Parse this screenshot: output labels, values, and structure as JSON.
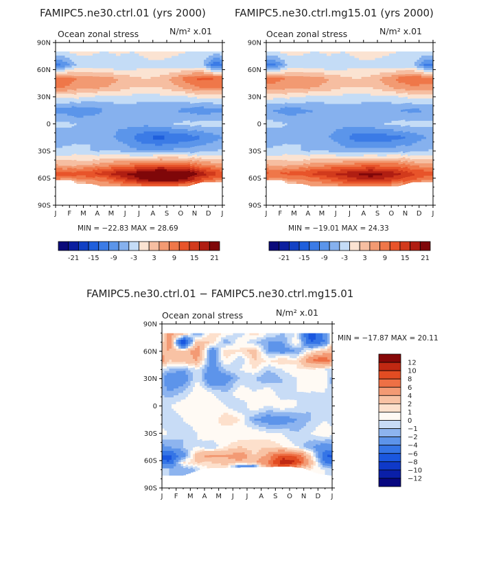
{
  "chart_data": [
    {
      "type": "heatmap",
      "title": "FAMIPC5.ne30.ctrl.01 (yrs 2000)",
      "subtitle": "Ocean zonal stress",
      "units": "N/m² x.01",
      "x_ticks": [
        "J",
        "F",
        "M",
        "A",
        "M",
        "J",
        "J",
        "A",
        "S",
        "O",
        "N",
        "D",
        "J"
      ],
      "y_ticks": [
        "90N",
        "60N",
        "30N",
        "0",
        "30S",
        "60S",
        "90S"
      ],
      "stats": "MIN = −22.83  MAX =  28.69",
      "field": {
        "lat": [
          80,
          65,
          50,
          40,
          30,
          15,
          0,
          -15,
          -30,
          -45,
          -55,
          -62,
          -70
        ],
        "rows": [
          [
            0,
            1,
            1,
            0,
            1,
            0,
            1,
            2,
            1,
            0,
            0,
            -1
          ],
          [
            -9,
            -3,
            -3,
            -3,
            -3,
            -2,
            -1,
            -1,
            -2,
            -3,
            -2,
            -12
          ],
          [
            12,
            9,
            9,
            8,
            6,
            4,
            3,
            4,
            7,
            11,
            13,
            12
          ],
          [
            9,
            7,
            7,
            6,
            5,
            3,
            3,
            3,
            5,
            7,
            9,
            9
          ],
          [
            1,
            1,
            0,
            -1,
            -1,
            -1,
            -1,
            -1,
            -1,
            0,
            1,
            1
          ],
          [
            -7,
            -9,
            -8,
            -6,
            -5,
            -5,
            -6,
            -6,
            -6,
            -7,
            -8,
            -7
          ],
          [
            -2,
            -3,
            -3,
            -4,
            -5,
            -5,
            -5,
            -4,
            -3,
            -2,
            -2,
            -2
          ],
          [
            -5,
            -4,
            -3,
            -4,
            -7,
            -9,
            -12,
            -13,
            -12,
            -11,
            -9,
            -7
          ],
          [
            -2,
            -2,
            -3,
            -3,
            -3,
            -5,
            -6,
            -6,
            -5,
            -5,
            -4,
            -3
          ],
          [
            5,
            5,
            6,
            7,
            9,
            10,
            12,
            13,
            12,
            11,
            9,
            7
          ],
          [
            13,
            14,
            15,
            17,
            20,
            22,
            25,
            27,
            26,
            24,
            20,
            16
          ],
          [
            8,
            8,
            9,
            10,
            14,
            18,
            22,
            24,
            24,
            20,
            14,
            10
          ],
          [
            -3,
            -2,
            3,
            5,
            6,
            7,
            8,
            8,
            7,
            6,
            2,
            -2
          ]
        ]
      },
      "colorbar": {
        "labels": [
          "-21",
          "-15",
          "-9",
          "-3",
          "3",
          "9",
          "15",
          "21"
        ],
        "levels": [
          -24,
          -21,
          -18,
          -15,
          -12,
          -9,
          -6,
          -3,
          0,
          3,
          6,
          9,
          12,
          15,
          18,
          21,
          24
        ]
      }
    },
    {
      "type": "heatmap",
      "title": "FAMIPC5.ne30.ctrl.mg15.01 (yrs 2000)",
      "subtitle": "Ocean zonal stress",
      "units": "N/m² x.01",
      "x_ticks": [
        "J",
        "F",
        "M",
        "A",
        "M",
        "J",
        "J",
        "A",
        "S",
        "O",
        "N",
        "D",
        "J"
      ],
      "y_ticks": [
        "90N",
        "60N",
        "30N",
        "0",
        "30S",
        "60S",
        "90S"
      ],
      "stats": "MIN = −19.01  MAX =  24.33",
      "field": {
        "lat": [
          80,
          65,
          50,
          40,
          30,
          15,
          0,
          -15,
          -30,
          -45,
          -55,
          -62,
          -70
        ],
        "rows": [
          [
            0,
            1,
            1,
            0,
            1,
            0,
            1,
            2,
            1,
            0,
            0,
            -1
          ],
          [
            -11,
            -3,
            -3,
            -3,
            -3,
            -2,
            -1,
            -1,
            -2,
            -3,
            -2,
            -10
          ],
          [
            10,
            9,
            9,
            8,
            6,
            4,
            3,
            4,
            7,
            10,
            12,
            11
          ],
          [
            8,
            7,
            7,
            6,
            5,
            3,
            3,
            3,
            5,
            7,
            8,
            8
          ],
          [
            1,
            1,
            0,
            -1,
            -1,
            -1,
            -1,
            -1,
            -1,
            0,
            1,
            1
          ],
          [
            -6,
            -8,
            -7,
            -6,
            -5,
            -5,
            -5,
            -6,
            -6,
            -6,
            -7,
            -6
          ],
          [
            -2,
            -3,
            -3,
            -4,
            -5,
            -5,
            -5,
            -4,
            -3,
            -2,
            -2,
            -2
          ],
          [
            -5,
            -4,
            -3,
            -4,
            -6,
            -8,
            -11,
            -11,
            -11,
            -10,
            -8,
            -6
          ],
          [
            -2,
            -2,
            -3,
            -3,
            -3,
            -5,
            -5,
            -5,
            -5,
            -4,
            -4,
            -3
          ],
          [
            5,
            5,
            6,
            7,
            8,
            9,
            10,
            11,
            10,
            10,
            8,
            7
          ],
          [
            12,
            13,
            14,
            16,
            18,
            19,
            21,
            23,
            21,
            19,
            16,
            14
          ],
          [
            8,
            8,
            9,
            10,
            12,
            15,
            17,
            19,
            17,
            15,
            12,
            9
          ],
          [
            -2,
            -2,
            3,
            5,
            6,
            7,
            7,
            7,
            6,
            5,
            2,
            -2
          ]
        ]
      },
      "colorbar": {
        "labels": [
          "-21",
          "-15",
          "-9",
          "-3",
          "3",
          "9",
          "15",
          "21"
        ],
        "levels": [
          -24,
          -21,
          -18,
          -15,
          -12,
          -9,
          -6,
          -3,
          0,
          3,
          6,
          9,
          12,
          15,
          18,
          21,
          24
        ]
      }
    },
    {
      "type": "heatmap",
      "title": "FAMIPC5.ne30.ctrl.01 − FAMIPC5.ne30.ctrl.mg15.01",
      "subtitle": "Ocean zonal stress",
      "units": "N/m² x.01",
      "x_ticks": [
        "J",
        "F",
        "M",
        "A",
        "M",
        "J",
        "J",
        "A",
        "S",
        "O",
        "N",
        "D",
        "J"
      ],
      "y_ticks": [
        "90N",
        "60N",
        "30N",
        "0",
        "30S",
        "60S",
        "90S"
      ],
      "stats": "MIN = −17.87  MAX =  20.11",
      "field": {
        "lat": [
          80,
          70,
          60,
          50,
          40,
          30,
          15,
          0,
          -15,
          -30,
          -45,
          -55,
          -62,
          -70
        ],
        "rows": [
          [
            5,
            4,
            -3,
            2,
            1,
            -1,
            2,
            0,
            -1,
            0,
            -8,
            -3
          ],
          [
            6,
            -10,
            3,
            2,
            -2,
            1,
            -1,
            -2,
            -2,
            1,
            -6,
            -4
          ],
          [
            4,
            2,
            6,
            -4,
            2,
            1,
            3,
            -2,
            -3,
            -2,
            1,
            3
          ],
          [
            2,
            3,
            4,
            -3,
            1,
            -1,
            2,
            1,
            2,
            1,
            6,
            8
          ],
          [
            -1,
            -2,
            0,
            -3,
            -1,
            0,
            1,
            -1,
            0,
            1,
            1,
            0
          ],
          [
            -4,
            -3,
            0,
            -4,
            -3,
            -1,
            -1,
            -2,
            -1,
            0,
            1,
            1
          ],
          [
            -2,
            -1,
            1,
            0,
            -1,
            1,
            0,
            1,
            -1,
            0,
            0,
            0
          ],
          [
            0,
            1,
            0,
            1,
            0,
            -1,
            1,
            0,
            1,
            0,
            -1,
            0
          ],
          [
            -1,
            0,
            1,
            0,
            2,
            1,
            -2,
            -3,
            -3,
            -2,
            -1,
            0
          ],
          [
            0,
            -1,
            0,
            1,
            0,
            0,
            1,
            0,
            0,
            -1,
            0,
            1
          ],
          [
            -2,
            -1,
            0,
            -1,
            1,
            2,
            1,
            2,
            1,
            0,
            -2,
            -3
          ],
          [
            -7,
            -3,
            3,
            5,
            4,
            6,
            2,
            5,
            9,
            8,
            2,
            -6
          ],
          [
            -6,
            1,
            2,
            2,
            3,
            3,
            4,
            6,
            12,
            10,
            3,
            -4
          ],
          [
            -1,
            -2,
            -1,
            1,
            0,
            -8,
            -10,
            5,
            4,
            2,
            1,
            0
          ]
        ]
      },
      "colorbar": {
        "labels": [
          "12",
          "10",
          "8",
          "6",
          "4",
          "2",
          "1",
          "0",
          "−1",
          "−2",
          "−4",
          "−6",
          "−8",
          "−10",
          "−12"
        ],
        "levels": [
          -14,
          -12,
          -10,
          -8,
          -6,
          -4,
          -2,
          -1,
          0,
          1,
          2,
          4,
          6,
          8,
          10,
          12,
          14
        ]
      }
    }
  ],
  "colors": {
    "levels16": [
      "#0a0a7a",
      "#0b1f9f",
      "#1241c4",
      "#1f5fdc",
      "#3b7be6",
      "#5b95ea",
      "#86b1ee",
      "#c4dcf6",
      "#fbe3d2",
      "#f6bea1",
      "#f29a72",
      "#ef7749",
      "#e8542a",
      "#d23a1c",
      "#b01e12",
      "#7f0709"
    ],
    "diff16": [
      "#070780",
      "#0a1fa8",
      "#0f39c8",
      "#1a57df",
      "#3575e6",
      "#5d94ea",
      "#8db4ef",
      "#c8dcf6",
      "#fffaf4",
      "#fde0cc",
      "#f8c2a4",
      "#f39a74",
      "#ee7045",
      "#e24c22",
      "#c02812",
      "#860808"
    ]
  }
}
